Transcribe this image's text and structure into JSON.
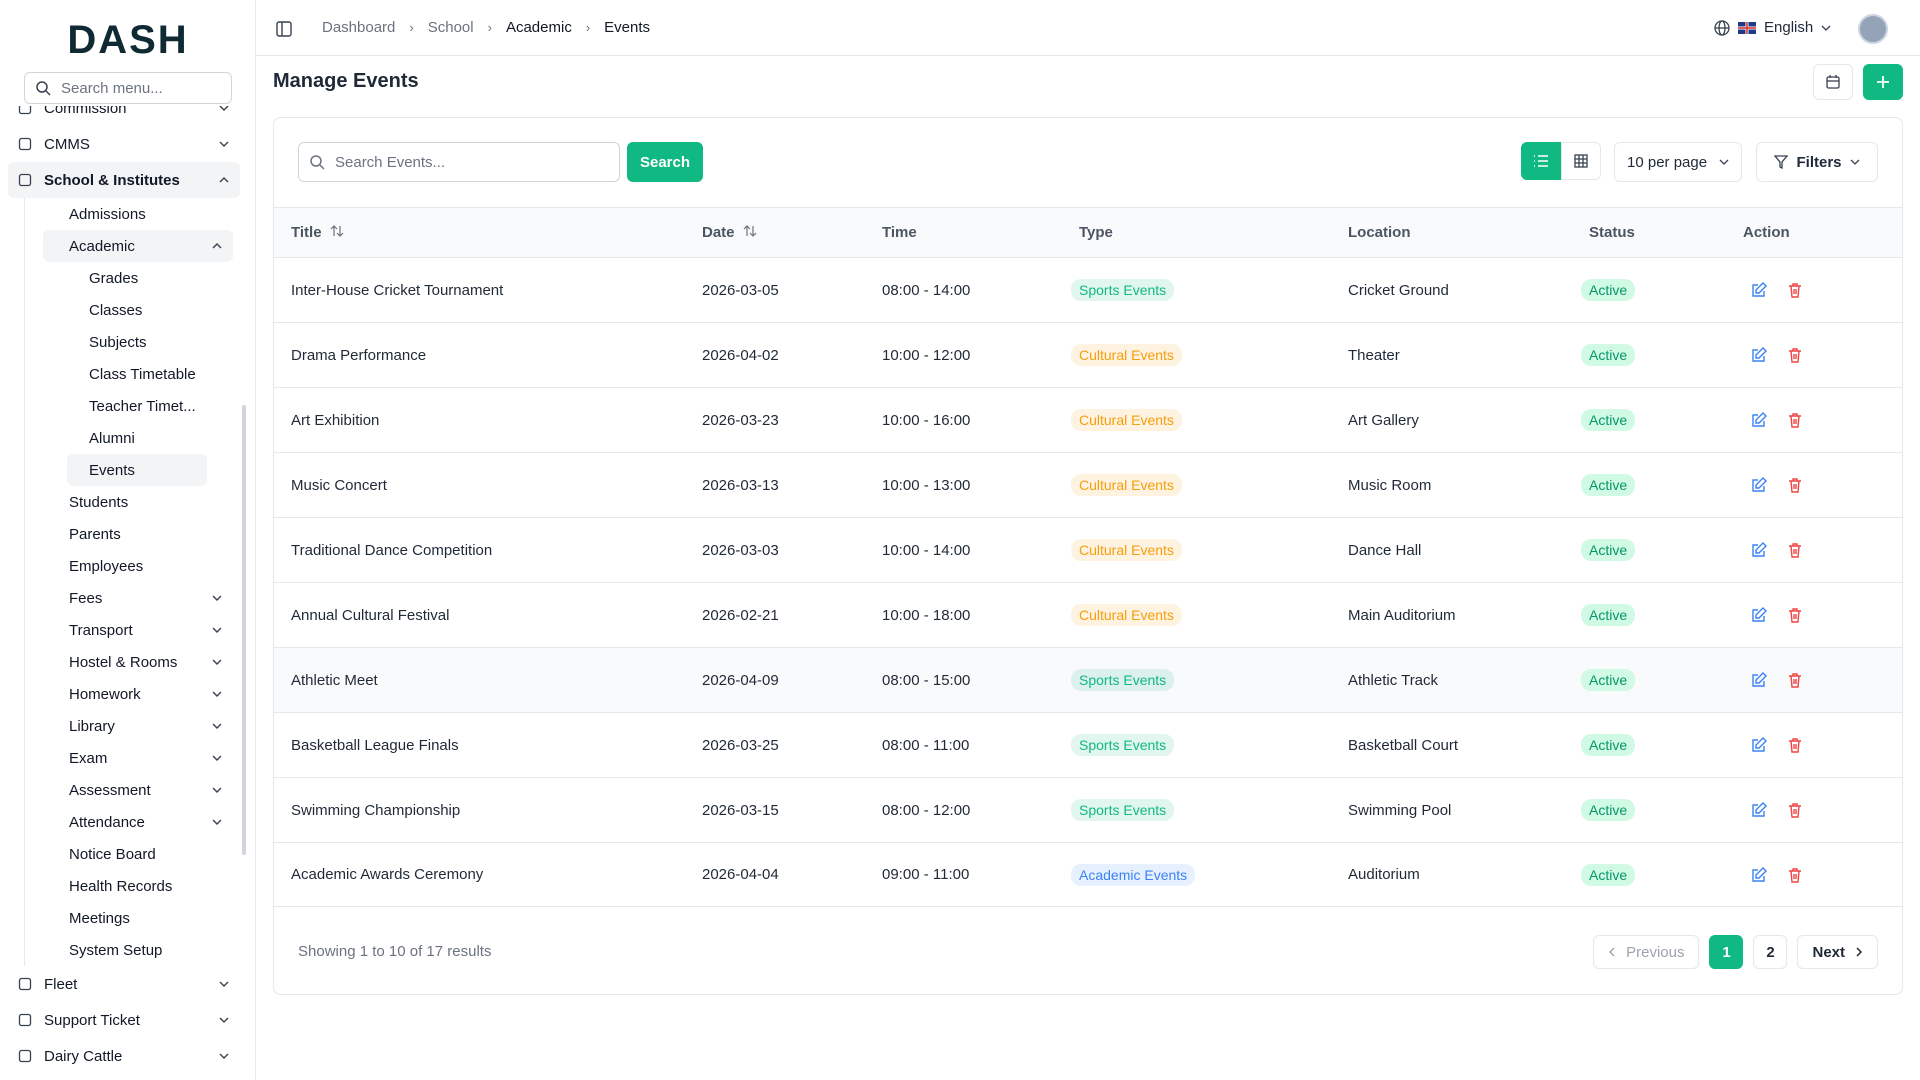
{
  "brand": "DASH",
  "sidebar": {
    "search_placeholder": "Search menu...",
    "items": [
      {
        "label": "Commission",
        "expandable": true
      },
      {
        "label": "CMMS",
        "expandable": true
      },
      {
        "label": "School & Institutes",
        "expandable": true,
        "active": true,
        "children": [
          {
            "label": "Admissions"
          },
          {
            "label": "Academic",
            "expandable": true,
            "active": true,
            "children": [
              {
                "label": "Grades"
              },
              {
                "label": "Classes"
              },
              {
                "label": "Subjects"
              },
              {
                "label": "Class Timetable"
              },
              {
                "label": "Teacher Timet..."
              },
              {
                "label": "Alumni"
              },
              {
                "label": "Events",
                "active": true
              }
            ]
          },
          {
            "label": "Students"
          },
          {
            "label": "Parents"
          },
          {
            "label": "Employees"
          },
          {
            "label": "Fees",
            "expandable": true
          },
          {
            "label": "Transport",
            "expandable": true
          },
          {
            "label": "Hostel & Rooms",
            "expandable": true
          },
          {
            "label": "Homework",
            "expandable": true
          },
          {
            "label": "Library",
            "expandable": true
          },
          {
            "label": "Exam",
            "expandable": true
          },
          {
            "label": "Assessment",
            "expandable": true
          },
          {
            "label": "Attendance",
            "expandable": true
          },
          {
            "label": "Notice Board"
          },
          {
            "label": "Health Records"
          },
          {
            "label": "Meetings"
          },
          {
            "label": "System Setup"
          }
        ]
      },
      {
        "label": "Fleet",
        "expandable": true
      },
      {
        "label": "Support Ticket",
        "expandable": true
      },
      {
        "label": "Dairy Cattle",
        "expandable": true
      }
    ]
  },
  "header": {
    "breadcrumb": [
      "Dashboard",
      "School",
      "Academic",
      "Events"
    ],
    "language": "English"
  },
  "page": {
    "title": "Manage Events"
  },
  "toolbar": {
    "search_placeholder": "Search Events...",
    "search_button": "Search",
    "per_page": "10 per page",
    "filters": "Filters"
  },
  "table": {
    "columns": [
      "Title",
      "Date",
      "Time",
      "Type",
      "Location",
      "Status",
      "Action"
    ],
    "rows": [
      {
        "title": "Inter-House Cricket Tournament",
        "date": "2026-03-05",
        "time": "08:00 - 14:00",
        "type": {
          "label": "Sports Events",
          "color": "#10b981"
        },
        "location": "Cricket Ground",
        "status": "Active"
      },
      {
        "title": "Drama Performance",
        "date": "2026-04-02",
        "time": "10:00 - 12:00",
        "type": {
          "label": "Cultural Events",
          "color": "#f59e0b"
        },
        "location": "Theater",
        "status": "Active"
      },
      {
        "title": "Art Exhibition",
        "date": "2026-03-23",
        "time": "10:00 - 16:00",
        "type": {
          "label": "Cultural Events",
          "color": "#f59e0b"
        },
        "location": "Art Gallery",
        "status": "Active"
      },
      {
        "title": "Music Concert",
        "date": "2026-03-13",
        "time": "10:00 - 13:00",
        "type": {
          "label": "Cultural Events",
          "color": "#f59e0b"
        },
        "location": "Music Room",
        "status": "Active"
      },
      {
        "title": "Traditional Dance Competition",
        "date": "2026-03-03",
        "time": "10:00 - 14:00",
        "type": {
          "label": "Cultural Events",
          "color": "#f59e0b"
        },
        "location": "Dance Hall",
        "status": "Active"
      },
      {
        "title": "Annual Cultural Festival",
        "date": "2026-02-21",
        "time": "10:00 - 18:00",
        "type": {
          "label": "Cultural Events",
          "color": "#f59e0b"
        },
        "location": "Main Auditorium",
        "status": "Active"
      },
      {
        "title": "Athletic Meet",
        "date": "2026-04-09",
        "time": "08:00 - 15:00",
        "type": {
          "label": "Sports Events",
          "color": "#10b981"
        },
        "location": "Athletic Track",
        "status": "Active"
      },
      {
        "title": "Basketball League Finals",
        "date": "2026-03-25",
        "time": "08:00 - 11:00",
        "type": {
          "label": "Sports Events",
          "color": "#10b981"
        },
        "location": "Basketball Court",
        "status": "Active"
      },
      {
        "title": "Swimming Championship",
        "date": "2026-03-15",
        "time": "08:00 - 12:00",
        "type": {
          "label": "Sports Events",
          "color": "#10b981"
        },
        "location": "Swimming Pool",
        "status": "Active"
      },
      {
        "title": "Academic Awards Ceremony",
        "date": "2026-04-04",
        "time": "09:00 - 11:00",
        "type": {
          "label": "Academic Events",
          "color": "#3b82f6"
        },
        "location": "Auditorium",
        "status": "Active"
      }
    ]
  },
  "pagination": {
    "summary": "Showing 1 to 10 of 17 results",
    "previous": "Previous",
    "pages": [
      "1",
      "2"
    ],
    "next": "Next"
  }
}
